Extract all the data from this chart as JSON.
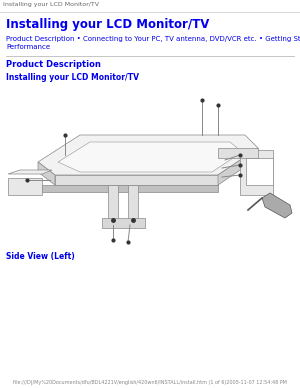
{
  "bg_color": "#ffffff",
  "tab_title": "Installing your LCD Monitor/TV",
  "tab_title_color": "#666666",
  "tab_title_fontsize": 4.5,
  "main_title": "Installing your LCD Monitor/TV",
  "main_title_color": "#0000ee",
  "main_title_fontsize": 8.5,
  "nav_text": "Product Description • Connecting to Your PC, TV antenna, DVD/VCR etc. • Getting Started • Optimizing\nPerformance",
  "nav_color": "#0000ee",
  "nav_fontsize": 5.0,
  "section_title": "Product Description",
  "section_title_color": "#0000ee",
  "section_title_fontsize": 6.0,
  "sub_title": "Installing your LCD Monitor/TV",
  "sub_title_color": "#0000ee",
  "sub_title_fontsize": 5.5,
  "caption": "Side View (Left)",
  "caption_color": "#0000ee",
  "caption_fontsize": 5.5,
  "footer_text": "file:///D|/My%20Documents/dfu/BDL4221V/english/420wn6/INSTALL/install.htm (1 of 6)2005-11-07 12:54:48 PM",
  "footer_color": "#888888",
  "footer_fontsize": 3.5,
  "divider_color": "#bbbbbb",
  "line_color": "#888888",
  "face_color_top": "#f2f2f2",
  "face_color_front": "#e0e0e0",
  "face_color_side": "#d0d0d0",
  "face_color_dark": "#c0c0c0"
}
